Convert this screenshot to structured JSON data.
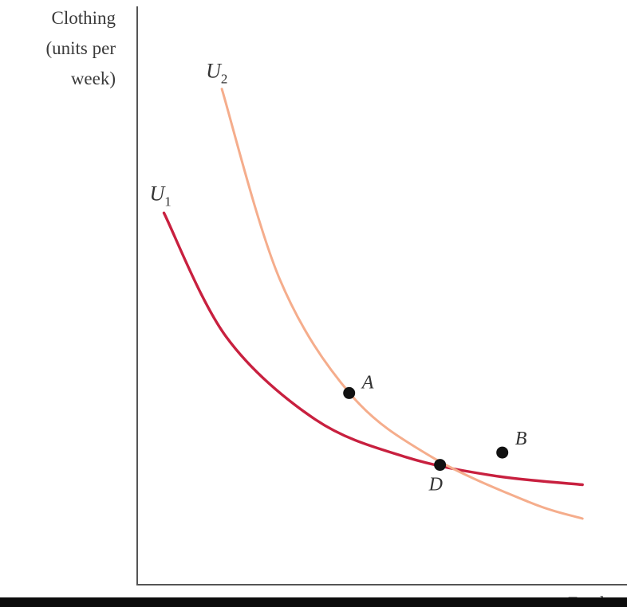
{
  "chart_data": {
    "type": "line",
    "ylabel": [
      "Clothing",
      "(units per",
      "week)"
    ],
    "xlabel": "Food",
    "series": [
      {
        "name": "U",
        "subscript": "1",
        "color": "#c8203f",
        "points": [
          [
            0.3,
            4.5
          ],
          [
            1.0,
            3.0
          ],
          [
            2.0,
            2.0
          ],
          [
            3.0,
            1.55
          ],
          [
            4.0,
            1.32
          ],
          [
            5.0,
            1.21
          ]
        ]
      },
      {
        "name": "U",
        "subscript": "2",
        "color": "#f5ad8c",
        "points": [
          [
            0.95,
            6.0
          ],
          [
            1.6,
            3.7
          ],
          [
            2.4,
            2.3
          ],
          [
            3.3,
            1.55
          ],
          [
            4.4,
            1.0
          ],
          [
            5.0,
            0.8
          ]
        ]
      }
    ],
    "points": [
      {
        "label": "A",
        "x": 2.38,
        "y": 2.32
      },
      {
        "label": "B",
        "x": 4.1,
        "y": 1.6
      },
      {
        "label": "D",
        "x": 3.4,
        "y": 1.45
      }
    ],
    "xlim": [
      0,
      5.5
    ],
    "ylim": [
      0,
      7
    ],
    "grid": false
  }
}
